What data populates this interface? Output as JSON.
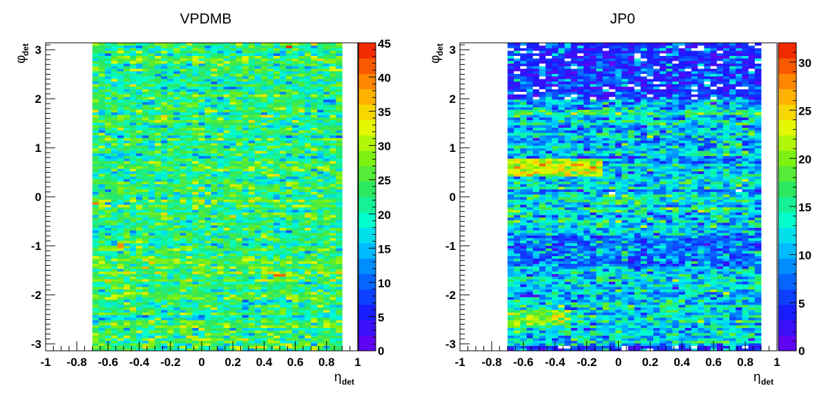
{
  "chart_data": [
    {
      "type": "heatmap",
      "title": "VPDMB",
      "xlabel": "η",
      "xlabel_sub": "det",
      "ylabel": "φ",
      "ylabel_sub": "det",
      "xlim": [
        -1,
        1
      ],
      "ylim": [
        -3.14159,
        3.14159
      ],
      "x_ticks": [
        "-1",
        "-0.8",
        "-0.6",
        "-0.4",
        "-0.2",
        "0",
        "0.2",
        "0.4",
        "0.6",
        "0.8",
        "1"
      ],
      "y_ticks": [
        "-3",
        "-2",
        "-1",
        "0",
        "1",
        "2",
        "3"
      ],
      "filled_x_range": [
        -0.7,
        0.9
      ],
      "eta_bins": 40,
      "phi_bins": 120,
      "z_range": [
        0,
        45
      ],
      "z_ticks": [
        "0",
        "5",
        "10",
        "15",
        "20",
        "25",
        "30",
        "35",
        "40",
        "45"
      ],
      "typical_z": 23,
      "spread_z": 6,
      "notable_cells": [
        {
          "eta": 0.57,
          "phi": 3.07,
          "z": 44
        },
        {
          "eta": 0.5,
          "phi": -1.6,
          "z": 41
        },
        {
          "eta": -0.68,
          "phi": -0.12,
          "z": 40
        },
        {
          "eta": -0.52,
          "phi": -1.0,
          "z": 39
        }
      ]
    },
    {
      "type": "heatmap",
      "title": "JP0",
      "xlabel": "η",
      "xlabel_sub": "det",
      "ylabel": "φ",
      "ylabel_sub": "det",
      "xlim": [
        -1,
        1
      ],
      "ylim": [
        -3.14159,
        3.14159
      ],
      "x_ticks": [
        "-1",
        "-0.8",
        "-0.6",
        "-0.4",
        "-0.2",
        "0",
        "0.2",
        "0.4",
        "0.6",
        "0.8",
        "1"
      ],
      "y_ticks": [
        "-3",
        "-2",
        "-1",
        "0",
        "1",
        "2",
        "3"
      ],
      "filled_x_range": [
        -0.7,
        0.9
      ],
      "eta_bins": 40,
      "phi_bins": 120,
      "z_range": [
        0,
        32
      ],
      "z_ticks": [
        "0",
        "5",
        "10",
        "15",
        "20",
        "25",
        "30"
      ],
      "typical_z": 12,
      "spread_z": 5,
      "low_regions": [
        {
          "phi_range": [
            2.0,
            3.14159
          ],
          "z": 4
        },
        {
          "phi_range": [
            -1.4,
            -0.8
          ],
          "z": 7
        },
        {
          "phi_range": [
            -3.14159,
            -3.05
          ],
          "z": 4
        }
      ],
      "high_regions": [
        {
          "eta_range": [
            -0.7,
            -0.1
          ],
          "phi_range": [
            0.4,
            0.8
          ],
          "z": 22
        },
        {
          "eta_range": [
            -0.7,
            -0.3
          ],
          "phi_range": [
            -2.6,
            -2.3
          ],
          "z": 20
        }
      ]
    }
  ]
}
